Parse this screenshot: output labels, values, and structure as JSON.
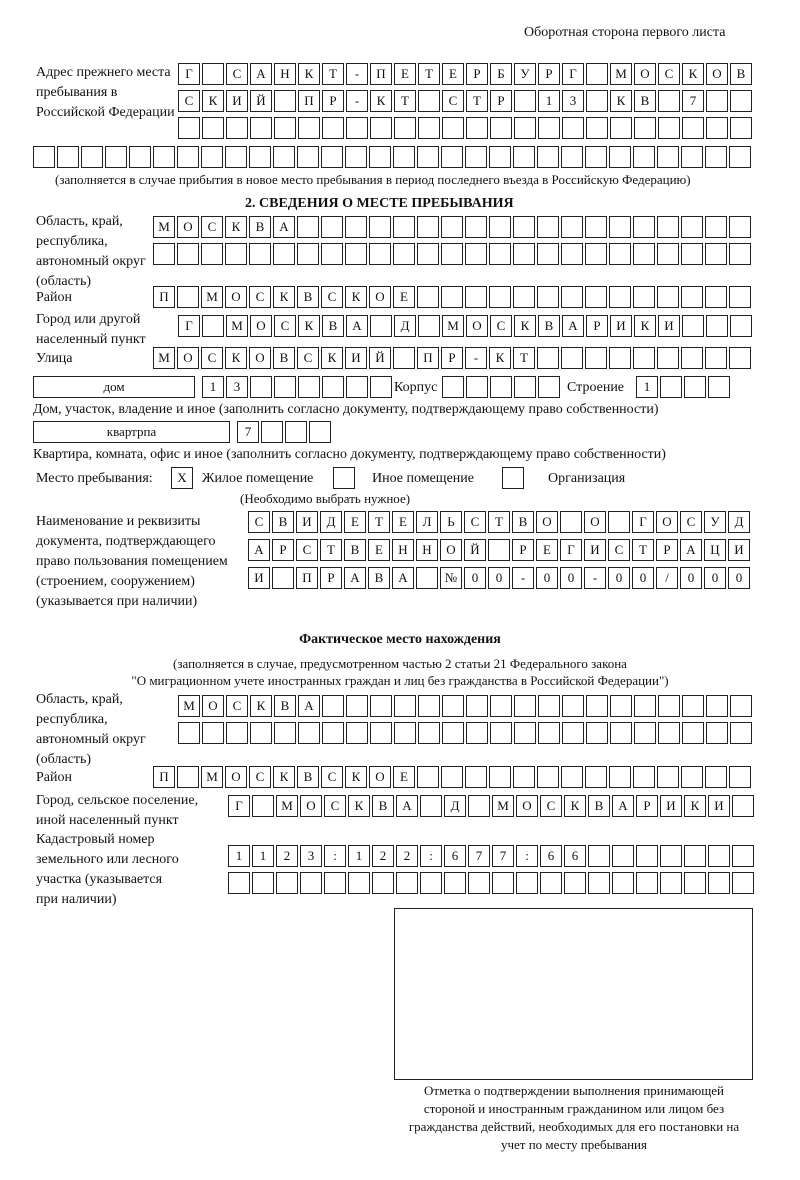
{
  "header": "Оборотная сторона первого листа",
  "prev": {
    "label": "Адрес прежнего места пребывания в Российской Федерации",
    "rows": [
      [
        "Г",
        "",
        "С",
        "А",
        "Н",
        "К",
        "Т",
        "-",
        "П",
        "Е",
        "Т",
        "Е",
        "Р",
        "Б",
        "У",
        "Р",
        "Г",
        "",
        "М",
        "О",
        "С",
        "К",
        "О",
        "В"
      ],
      [
        "С",
        "К",
        "И",
        "Й",
        "",
        "П",
        "Р",
        "-",
        "К",
        "Т",
        "",
        "С",
        "Т",
        "Р",
        "",
        "1",
        "3",
        "",
        "К",
        "В",
        "",
        "7",
        "",
        ""
      ],
      [
        "",
        "",
        "",
        "",
        "",
        "",
        "",
        "",
        "",
        "",
        "",
        "",
        "",
        "",
        "",
        "",
        "",
        "",
        "",
        "",
        "",
        "",
        "",
        ""
      ],
      [
        "",
        "",
        "",
        "",
        "",
        "",
        "",
        "",
        "",
        "",
        "",
        "",
        "",
        "",
        "",
        "",
        "",
        "",
        "",
        "",
        "",
        "",
        "",
        "",
        "",
        "",
        "",
        "",
        "",
        ""
      ]
    ],
    "note": "(заполняется в случае прибытия в новое место пребывания в период последнего въезда в Российскую Федерацию)"
  },
  "section2": {
    "title": "2. СВЕДЕНИЯ О МЕСТЕ ПРЕБЫВАНИЯ",
    "region_label": "Область, край, республика, автономный округ (область)",
    "region": [
      [
        "М",
        "О",
        "С",
        "К",
        "В",
        "А",
        "",
        "",
        "",
        "",
        "",
        "",
        "",
        "",
        "",
        "",
        "",
        "",
        "",
        "",
        "",
        "",
        "",
        "",
        ""
      ],
      [
        "",
        "",
        "",
        "",
        "",
        "",
        "",
        "",
        "",
        "",
        "",
        "",
        "",
        "",
        "",
        "",
        "",
        "",
        "",
        "",
        "",
        "",
        "",
        "",
        ""
      ]
    ],
    "district_label": "Район",
    "district": [
      "П",
      "",
      "М",
      "О",
      "С",
      "К",
      "В",
      "С",
      "К",
      "О",
      "Е",
      "",
      "",
      "",
      "",
      "",
      "",
      "",
      "",
      "",
      "",
      "",
      "",
      "",
      ""
    ],
    "city_label": "Город или другой населенный пункт",
    "city": [
      "Г",
      "",
      "М",
      "О",
      "С",
      "К",
      "В",
      "А",
      "",
      "Д",
      "",
      "М",
      "О",
      "С",
      "К",
      "В",
      "А",
      "Р",
      "И",
      "К",
      "И",
      "",
      "",
      ""
    ],
    "street_label": "Улица",
    "street": [
      "М",
      "О",
      "С",
      "К",
      "О",
      "В",
      "С",
      "К",
      "И",
      "Й",
      "",
      "П",
      "Р",
      "-",
      "К",
      "Т",
      "",
      "",
      "",
      "",
      "",
      "",
      "",
      "",
      ""
    ],
    "house_type": "дом",
    "house": [
      "1",
      "3",
      "",
      "",
      "",
      "",
      "",
      ""
    ],
    "korpus_label": "Корпус",
    "korpus": [
      "",
      "",
      "",
      "",
      ""
    ],
    "building_label": "Строение",
    "building": [
      "1",
      "",
      "",
      ""
    ],
    "house_note": "Дом, участок, владение и иное (заполнить согласно документу, подтверждающему право собственности)",
    "flat_type": "квартрпа",
    "flat": [
      "7",
      "",
      "",
      ""
    ],
    "flat_note": "Квартира, комната, офис и иное (заполнить согласно документу, подтверждающему право собственности)",
    "place_label": "Место пребывания:",
    "options": [
      {
        "mark": "X",
        "label": "Жилое помещение"
      },
      {
        "mark": "",
        "label": "Иное помещение"
      },
      {
        "mark": "",
        "label": "Организация"
      }
    ],
    "choose_note": "(Необходимо выбрать нужное)",
    "doc_label": "Наименование и реквизиты документа, подтверждающего право пользования помещением (строением, сооружением) (указывается при наличии)",
    "doc": [
      [
        "С",
        "В",
        "И",
        "Д",
        "Е",
        "Т",
        "Е",
        "Л",
        "Ь",
        "С",
        "Т",
        "В",
        "О",
        "",
        "О",
        "",
        "Г",
        "О",
        "С",
        "У",
        "Д"
      ],
      [
        "А",
        "Р",
        "С",
        "Т",
        "В",
        "Е",
        "Н",
        "Н",
        "О",
        "Й",
        "",
        "Р",
        "Е",
        "Г",
        "И",
        "С",
        "Т",
        "Р",
        "А",
        "Ц",
        "И"
      ],
      [
        "И",
        "",
        "П",
        "Р",
        "А",
        "В",
        "А",
        "",
        "№",
        "0",
        "0",
        "-",
        "0",
        "0",
        "-",
        "0",
        "0",
        "/",
        "0",
        "0",
        "0"
      ]
    ]
  },
  "actual": {
    "title": "Фактическое место нахождения",
    "note1": "(заполняется в случае, предусмотренном частью 2 статьи 21 Федерального закона",
    "note2": "\"О миграционном учете иностранных граждан и лиц без гражданства в Российской Федерации\")",
    "region_label": "Область, край, республика, автономный округ (область)",
    "region": [
      [
        "М",
        "О",
        "С",
        "К",
        "В",
        "А",
        "",
        "",
        "",
        "",
        "",
        "",
        "",
        "",
        "",
        "",
        "",
        "",
        "",
        "",
        "",
        "",
        "",
        ""
      ],
      [
        "",
        "",
        "",
        "",
        "",
        "",
        "",
        "",
        "",
        "",
        "",
        "",
        "",
        "",
        "",
        "",
        "",
        "",
        "",
        "",
        "",
        "",
        "",
        ""
      ]
    ],
    "district_label": "Район",
    "district": [
      "П",
      "",
      "М",
      "О",
      "С",
      "К",
      "В",
      "С",
      "К",
      "О",
      "Е",
      "",
      "",
      "",
      "",
      "",
      "",
      "",
      "",
      "",
      "",
      "",
      "",
      "",
      ""
    ],
    "city_label": "Город, сельское поселение, иной населенный пункт",
    "city": [
      "Г",
      "",
      "М",
      "О",
      "С",
      "К",
      "В",
      "А",
      "",
      "Д",
      "",
      "М",
      "О",
      "С",
      "К",
      "В",
      "А",
      "Р",
      "И",
      "К",
      "И",
      ""
    ],
    "cadastre_label": "Кадастровый номер земельного или лесного участка (указывается при наличии)",
    "cadastre": [
      [
        "1",
        "1",
        "2",
        "3",
        ":",
        "1",
        "2",
        "2",
        ":",
        "6",
        "7",
        "7",
        ":",
        "6",
        "6",
        "",
        "",
        "",
        "",
        "",
        "",
        ""
      ],
      [
        "",
        "",
        "",
        "",
        "",
        "",
        "",
        "",
        "",
        "",
        "",
        "",
        "",
        "",
        "",
        "",
        "",
        "",
        "",
        "",
        "",
        ""
      ]
    ]
  },
  "stamp_caption": "Отметка о подтверждении выполнения принимающей стороной и иностранным гражданином или лицом без гражданства действий, необходимых для его постановки на учет по месту пребывания"
}
